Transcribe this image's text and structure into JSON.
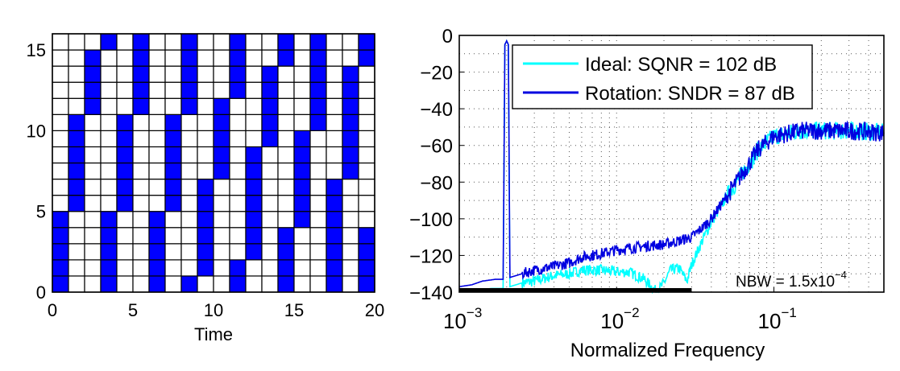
{
  "chart_data": [
    {
      "type": "heatmap",
      "xlabel": "Time",
      "ylabel": "",
      "xlim": [
        0,
        20
      ],
      "ylim": [
        0,
        16
      ],
      "xticks": [
        0,
        5,
        10,
        15,
        20
      ],
      "yticks": [
        0,
        5,
        10,
        15
      ],
      "grid": true,
      "colors": {
        "filled": "#0000ff",
        "empty": "#ffffff",
        "gridline": "#000000"
      },
      "filled_cells_per_time": [
        [
          0,
          1,
          2,
          3,
          4
        ],
        [
          5,
          6,
          7,
          8,
          9,
          10
        ],
        [
          11,
          12,
          13,
          14
        ],
        [
          15,
          0,
          1,
          2,
          3,
          4
        ],
        [
          5,
          6,
          7,
          8,
          9,
          10
        ],
        [
          11,
          12,
          13,
          14,
          15
        ],
        [
          0,
          1,
          2,
          3,
          4
        ],
        [
          5,
          6,
          7,
          8,
          9,
          10
        ],
        [
          11,
          12,
          13,
          14,
          15,
          0
        ],
        [
          1,
          2,
          3,
          4,
          5,
          6
        ],
        [
          7,
          8,
          9,
          10,
          11
        ],
        [
          12,
          13,
          14,
          15,
          0,
          1
        ],
        [
          2,
          3,
          4,
          5,
          6,
          7,
          8
        ],
        [
          9,
          10,
          11,
          12,
          13
        ],
        [
          14,
          15,
          0,
          1,
          2,
          3
        ],
        [
          4,
          5,
          6,
          7,
          8,
          9
        ],
        [
          10,
          11,
          12,
          13,
          14,
          15
        ],
        [
          0,
          1,
          2,
          3,
          4,
          5,
          6
        ],
        [
          7,
          8,
          9,
          10,
          11,
          12,
          13
        ],
        [
          14,
          15,
          0,
          1,
          2,
          3
        ]
      ]
    },
    {
      "type": "line",
      "xlabel": "Normalized Frequency",
      "ylabel": "",
      "xscale": "log",
      "xlim": [
        0.001,
        0.5
      ],
      "ylim": [
        -140,
        0
      ],
      "xtick_labels": [
        {
          "base": "10",
          "exp": "−3",
          "value": 0.001
        },
        {
          "base": "10",
          "exp": "−2",
          "value": 0.01
        },
        {
          "base": "10",
          "exp": "−1",
          "value": 0.1
        }
      ],
      "yticks": [
        0,
        -20,
        -40,
        -60,
        -80,
        -100,
        -120,
        -140
      ],
      "ytick_labels": [
        "0",
        "−20",
        "−40",
        "−60",
        "−80",
        "−100",
        "−120",
        "−140"
      ],
      "grid": "dotted",
      "legend_placement": "top-right",
      "annotation": {
        "text": "NBW = 1.5x10",
        "exp": "−4"
      },
      "signal_band": [
        0.001,
        0.03
      ],
      "series": [
        {
          "name": "Ideal: SQNR = 102 dB",
          "color": "#00ffff",
          "x": [
            0.001,
            0.0013,
            0.0016,
            0.0019,
            0.00195,
            0.002,
            0.00205,
            0.0021,
            0.0025,
            0.003,
            0.004,
            0.005,
            0.006,
            0.008,
            0.01,
            0.012,
            0.015,
            0.018,
            0.02,
            0.022,
            0.025,
            0.028,
            0.03,
            0.035,
            0.04,
            0.05,
            0.06,
            0.08,
            0.1,
            0.15,
            0.2,
            0.3,
            0.5
          ],
          "y": [
            -139,
            -139,
            -138,
            -138,
            -5,
            -3,
            -5,
            -137,
            -135,
            -134,
            -131,
            -130,
            -128,
            -128,
            -129,
            -129,
            -133,
            -140,
            -135,
            -128,
            -127,
            -134,
            -125,
            -112,
            -102,
            -88,
            -78,
            -62,
            -55,
            -52,
            -52,
            -52,
            -53
          ]
        },
        {
          "name": "Rotation: SNDR = 87 dB",
          "color": "#0000e0",
          "x": [
            0.001,
            0.0012,
            0.0014,
            0.0017,
            0.0019,
            0.00195,
            0.002,
            0.00205,
            0.0021,
            0.0025,
            0.003,
            0.004,
            0.005,
            0.006,
            0.008,
            0.01,
            0.015,
            0.02,
            0.025,
            0.03,
            0.035,
            0.04,
            0.05,
            0.06,
            0.08,
            0.1,
            0.15,
            0.2,
            0.3,
            0.5
          ],
          "y": [
            -137,
            -136,
            -134,
            -133,
            -133,
            -5,
            -3,
            -5,
            -132,
            -130,
            -128,
            -126,
            -124,
            -121,
            -119,
            -117,
            -115,
            -114,
            -112,
            -110,
            -105,
            -100,
            -88,
            -78,
            -62,
            -55,
            -52,
            -52,
            -52,
            -53
          ]
        }
      ]
    }
  ]
}
